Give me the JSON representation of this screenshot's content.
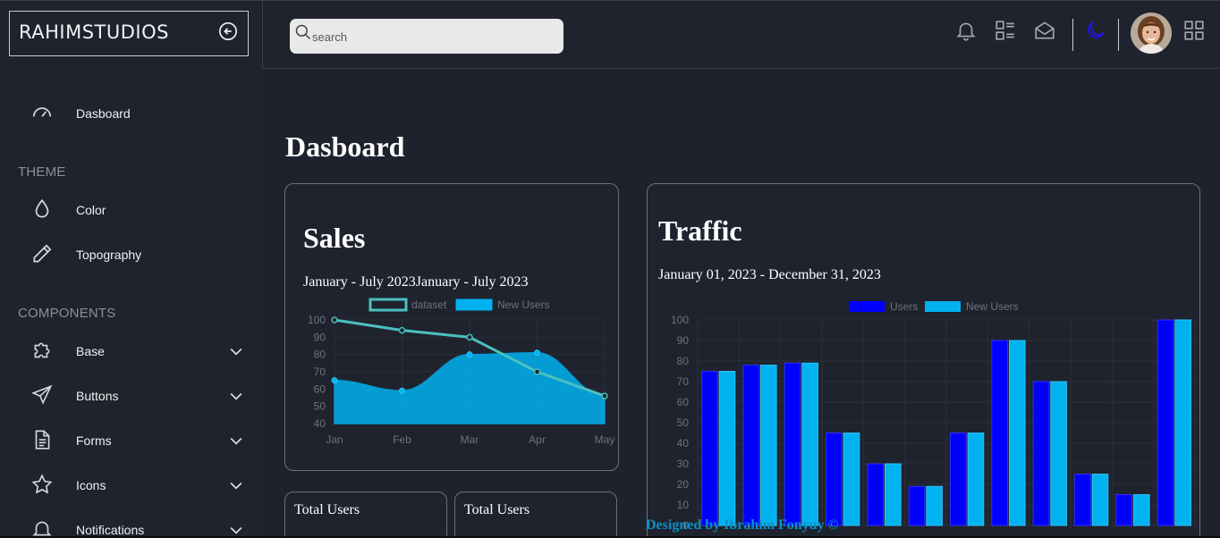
{
  "brand": {
    "name": "RAHIMSTUDIOS"
  },
  "sidebar": {
    "dashboard": "Dasboard",
    "theme_title": "THEME",
    "theme_items": [
      "Color",
      "Topography"
    ],
    "components_title": "COMPONENTS",
    "component_items": [
      "Base",
      "Buttons",
      "Forms",
      "Icons",
      "Notifications"
    ]
  },
  "topbar": {
    "search_placeholder": "search",
    "icons": [
      "bell-icon",
      "list-icon",
      "mail-icon",
      "moon-icon",
      "grid-icon"
    ],
    "accent_color": "#1f16d8"
  },
  "main": {
    "title": "Dasboard",
    "sales": {
      "title": "Sales",
      "subtitle": "January - July 2023January - July 2023"
    },
    "traffic": {
      "title": "Traffic",
      "subtitle": "January 01, 2023 - December 31, 2023"
    },
    "mini_cards": [
      "Total Users",
      "Total Users"
    ],
    "footer": "Designed by Ibrahim Fonyuy ©"
  },
  "chart_data": [
    {
      "type": "line",
      "categories": [
        "Jan",
        "Feb",
        "Mar",
        "Apr",
        "May"
      ],
      "ylim": [
        40,
        100
      ],
      "yticks": [
        40,
        50,
        60,
        70,
        80,
        90,
        100
      ],
      "series": [
        {
          "name": "dataset",
          "values": [
            100,
            94,
            90,
            70,
            56
          ],
          "color": "#4bc0c0",
          "fill": false
        },
        {
          "name": "New Users",
          "values": [
            65,
            59,
            80,
            81,
            56
          ],
          "color": "#00b2f0",
          "fill": true
        }
      ],
      "legend": "top",
      "grid": true
    },
    {
      "type": "bar",
      "categories": [
        "",
        "",
        "",
        "",
        "",
        "",
        "",
        "",
        "",
        "",
        "",
        ""
      ],
      "ylim": [
        0,
        100
      ],
      "yticks": [
        0,
        10,
        20,
        30,
        40,
        50,
        60,
        70,
        80,
        90,
        100
      ],
      "series": [
        {
          "name": "Users",
          "values": [
            75,
            78,
            79,
            45,
            30,
            19,
            45,
            90,
            70,
            25,
            15,
            100
          ],
          "color": "#0000ff"
        },
        {
          "name": "New Users",
          "values": [
            75,
            78,
            79,
            45,
            30,
            19,
            45,
            90,
            70,
            25,
            15,
            100
          ],
          "color": "#00b2f0"
        }
      ],
      "legend": "top",
      "grid": true
    }
  ]
}
